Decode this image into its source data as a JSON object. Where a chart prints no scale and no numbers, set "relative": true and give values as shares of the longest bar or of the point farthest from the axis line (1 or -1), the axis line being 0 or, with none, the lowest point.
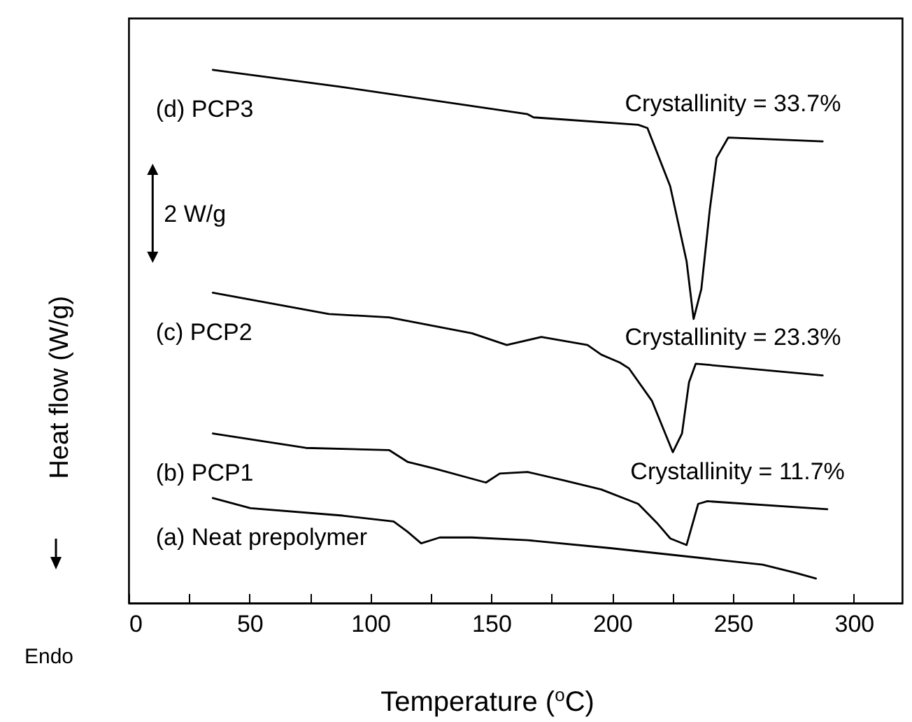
{
  "chart_data": {
    "type": "line",
    "relative": true,
    "xlabel": "Temperature ($^{o}$C)",
    "ylabel": "Heat flow (W/g)",
    "xlim": [
      0,
      320
    ],
    "xticks": [
      0,
      {
        "value": 25,
        "label": null
      },
      50,
      {
        "value": 75,
        "label": null
      },
      100,
      {
        "value": 125,
        "label": null
      },
      150,
      {
        "value": 175,
        "label": null
      },
      200,
      {
        "value": 225,
        "label": null
      },
      250,
      {
        "value": 275,
        "label": null
      },
      300
    ],
    "grid": false,
    "marker": "none",
    "line_style": "solid",
    "series": [
      {
        "name": "(d) PCP3",
        "color": "#000000",
        "x": [
          34.8,
          86.7,
          165,
          167.5,
          210.8,
          214.6,
          224,
          230.8,
          233.7,
          236.9,
          240.4,
          243.2,
          248,
          287.1
        ],
        "values": [
          1.0,
          0.969,
          0.917,
          0.911,
          0.897,
          0.891,
          0.782,
          0.641,
          0.533,
          0.589,
          0.738,
          0.835,
          0.873,
          0.866
        ]
      },
      {
        "name": "(c) PCP2",
        "color": "#000000",
        "x": [
          34.8,
          82.9,
          107.7,
          142,
          156.4,
          170.7,
          189.8,
          195.5,
          203.2,
          207,
          216.5,
          225.1,
          228.9,
          231.8,
          234.6,
          287.1
        ],
        "values": [
          0.582,
          0.542,
          0.536,
          0.506,
          0.484,
          0.499,
          0.484,
          0.466,
          0.451,
          0.44,
          0.379,
          0.283,
          0.318,
          0.414,
          0.449,
          0.427
        ]
      },
      {
        "name": "(b) PCP1",
        "color": "#000000",
        "x": [
          34.8,
          73.3,
          107.7,
          115.3,
          126.7,
          147.8,
          153.5,
          165,
          180,
          195.5,
          210.8,
          218.4,
          224.1,
          230.8,
          235.6,
          239.4,
          289
        ],
        "values": [
          0.318,
          0.291,
          0.287,
          0.265,
          0.252,
          0.226,
          0.243,
          0.246,
          0.23,
          0.213,
          0.186,
          0.151,
          0.121,
          0.109,
          0.186,
          0.191,
          0.176
        ]
      },
      {
        "name": "(a) Neat prepolymer",
        "color": "#000000",
        "x": [
          34.8,
          50.4,
          88.6,
          109.6,
          115.3,
          121,
          128.7,
          142,
          165,
          199.3,
          262.3,
          275.7,
          284.3
        ],
        "values": [
          0.197,
          0.178,
          0.164,
          0.153,
          0.134,
          0.112,
          0.123,
          0.123,
          0.118,
          0.103,
          0.072,
          0.057,
          0.046
        ]
      }
    ],
    "annotations": [
      "Crystallinity = 33.7%",
      "Crystallinity = 23.3%",
      "Crystallinity = 11.7%",
      "2 W/g",
      "Endo"
    ]
  }
}
